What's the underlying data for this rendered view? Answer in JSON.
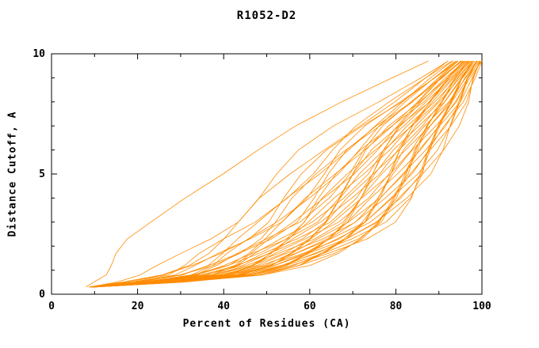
{
  "chart_data": {
    "type": "line",
    "title": "R1052-D2",
    "xlabel": "Percent of Residues (CA)",
    "ylabel": "Distance Cutoff, A",
    "xlim": [
      0,
      100
    ],
    "ylim": [
      0,
      10
    ],
    "x_ticks": [
      0,
      20,
      40,
      60,
      80,
      100
    ],
    "x_minor_ticks": [
      10,
      30,
      50,
      70,
      90
    ],
    "y_ticks": [
      0,
      5,
      10
    ],
    "y_minor_ticks": [
      1,
      2,
      3,
      4,
      6,
      7,
      8,
      9
    ],
    "grid": false,
    "legend": "none",
    "line_color": "#ff8c00",
    "line_width": 0.8,
    "series_model": {
      "description": "Bundle of per-model accuracy curves: cumulative percent of CA residues under each distance cutoff. Each curve interpolates between the left (best/fastest-rising) and right (slowest) envelopes by its fraction value.",
      "y_levels": [
        0.3,
        0.5,
        0.8,
        1.2,
        1.7,
        2.3,
        3.0,
        4.0,
        5.0,
        6.0,
        7.0,
        8.0,
        9.0,
        9.7
      ],
      "x_envelope_low": [
        8,
        9,
        11,
        13,
        16,
        20,
        25,
        31,
        38,
        46,
        56,
        68,
        80,
        88
      ],
      "x_envelope_high": [
        10,
        30,
        48,
        58,
        65,
        72,
        78,
        83,
        87,
        90,
        93,
        96,
        98,
        100
      ],
      "fractions": [
        0.0,
        0.3,
        0.38,
        0.42,
        0.45,
        0.48,
        0.5,
        0.52,
        0.54,
        0.56,
        0.58,
        0.6,
        0.62,
        0.63,
        0.65,
        0.66,
        0.68,
        0.69,
        0.7,
        0.72,
        0.73,
        0.74,
        0.76,
        0.77,
        0.78,
        0.8,
        0.81,
        0.82,
        0.83,
        0.85,
        0.86,
        0.87,
        0.88,
        0.89,
        0.9,
        0.91,
        0.92,
        0.93,
        0.94,
        0.95,
        0.96,
        0.97,
        0.98,
        0.99,
        1.0
      ],
      "jitter": {
        "amp": 2.5,
        "freq": 0.9,
        "phase_step": 2.399
      }
    }
  }
}
